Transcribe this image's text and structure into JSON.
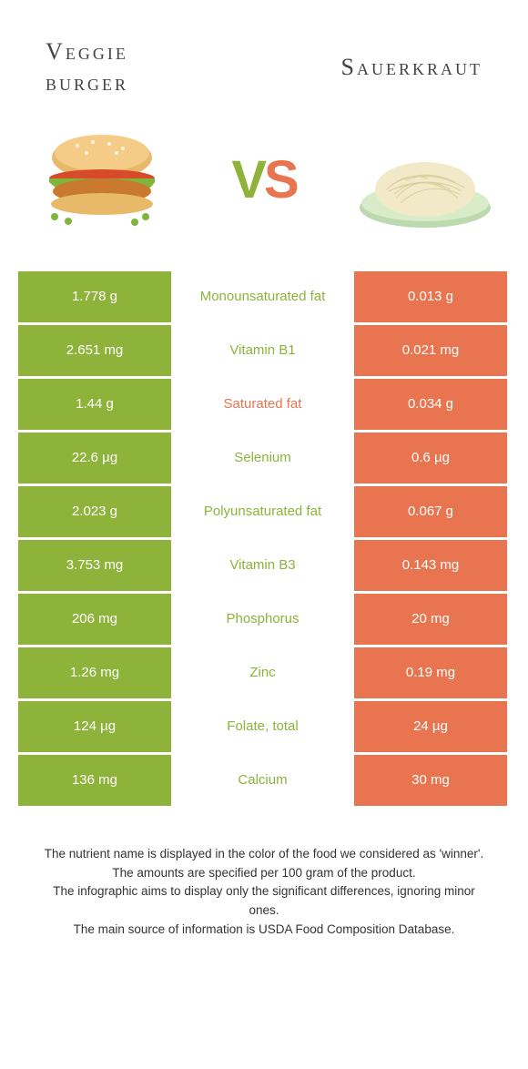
{
  "colors": {
    "green": "#8db33a",
    "orange": "#e87450",
    "white": "#ffffff",
    "text": "#333333"
  },
  "header": {
    "left_line1": "Veggie",
    "left_line2": "burger",
    "right": "Sauerkraut",
    "vs_v": "V",
    "vs_s": "S"
  },
  "images": {
    "left_alt": "veggie-burger",
    "right_alt": "sauerkraut"
  },
  "rows": [
    {
      "left": "1.778 g",
      "label": "Monounsaturated fat",
      "right": "0.013 g",
      "winner": "left"
    },
    {
      "left": "2.651 mg",
      "label": "Vitamin B1",
      "right": "0.021 mg",
      "winner": "left"
    },
    {
      "left": "1.44 g",
      "label": "Saturated fat",
      "right": "0.034 g",
      "winner": "right"
    },
    {
      "left": "22.6 µg",
      "label": "Selenium",
      "right": "0.6 µg",
      "winner": "left"
    },
    {
      "left": "2.023 g",
      "label": "Polyunsaturated fat",
      "right": "0.067 g",
      "winner": "left"
    },
    {
      "left": "3.753 mg",
      "label": "Vitamin B3",
      "right": "0.143 mg",
      "winner": "left"
    },
    {
      "left": "206 mg",
      "label": "Phosphorus",
      "right": "20 mg",
      "winner": "left"
    },
    {
      "left": "1.26 mg",
      "label": "Zinc",
      "right": "0.19 mg",
      "winner": "left"
    },
    {
      "left": "124 µg",
      "label": "Folate, total",
      "right": "24 µg",
      "winner": "left"
    },
    {
      "left": "136 mg",
      "label": "Calcium",
      "right": "30 mg",
      "winner": "left"
    }
  ],
  "footnotes": [
    "The nutrient name is displayed in the color of the food we considered as 'winner'.",
    "The amounts are specified per 100 gram of the product.",
    "The infographic aims to display only the significant differences, ignoring minor ones.",
    "The main source of information is USDA Food Composition Database."
  ]
}
